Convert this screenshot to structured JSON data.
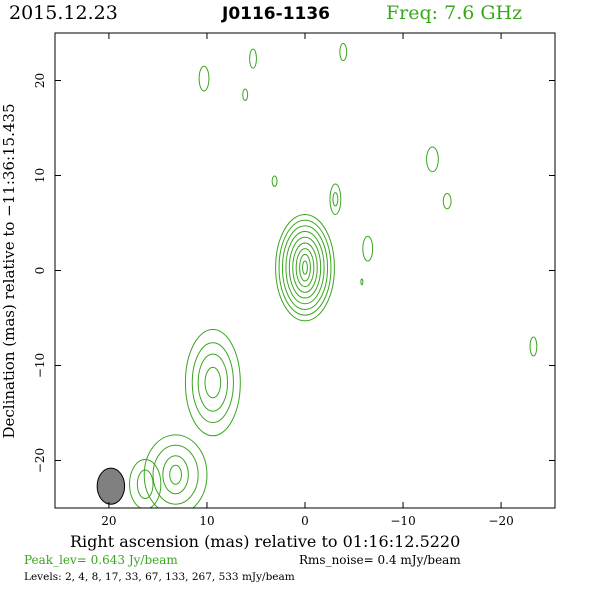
{
  "header": {
    "date": "2015.12.23",
    "source": "J0116-1136",
    "frequency": "Freq: 7.6 GHz"
  },
  "footer": {
    "peak_level": "Peak_lev=  0.643 Jy/beam",
    "rms_noise": "Rms_noise=  0.4 mJy/beam",
    "levels": "Levels:  2,   4,   8,  17,  33,  67, 133, 267, 533 mJy/beam"
  },
  "colors": {
    "contour": "#3aa61e",
    "axis": "#000000",
    "beam": "#808080"
  },
  "chart_data": {
    "type": "contour",
    "title": "J0116-1136",
    "xlabel": "Right ascension (mas) relative to 01:16:12.5220",
    "ylabel": "Declination (mas) relative to −11:36:15.435",
    "xlim": [
      25.5,
      -25.5
    ],
    "ylim": [
      -25,
      25
    ],
    "xticks": [
      20,
      10,
      0,
      -10,
      -20
    ],
    "xtick_labels": [
      "20",
      "10",
      "0",
      "−10",
      "−20"
    ],
    "yticks": [
      20,
      10,
      0,
      -10,
      -20
    ],
    "ytick_labels": [
      "20",
      "10",
      "0",
      "−10",
      "−20"
    ],
    "contour_levels_mJy": [
      2,
      4,
      8,
      17,
      33,
      67,
      133,
      267,
      533
    ],
    "peak_Jy_per_beam": 0.643,
    "rms_noise_mJy_per_beam": 0.4,
    "beam": {
      "x": 19.8,
      "y": -22.7,
      "major_mas": 3.8,
      "minor_mas": 1.4,
      "pa_deg": 0
    },
    "components": [
      {
        "name": "core",
        "x": 0.0,
        "y": 0.3,
        "ring_widths": [
          3.0,
          2.65,
          2.3,
          1.95,
          1.6,
          1.25,
          0.9,
          0.55,
          0.25
        ],
        "ring_heights": [
          5.6,
          5.0,
          4.4,
          3.8,
          3.2,
          2.6,
          2.0,
          1.4,
          0.7
        ]
      },
      {
        "name": "jet-knot-1",
        "x": 9.4,
        "y": -11.8,
        "ring_widths": [
          2.8,
          2.1,
          1.5,
          0.8
        ],
        "ring_heights": [
          5.6,
          4.2,
          3.0,
          1.6
        ]
      },
      {
        "name": "jet-knot-2",
        "x": 13.2,
        "y": -21.5,
        "ring_widths": [
          3.2,
          2.3,
          1.3,
          0.6
        ],
        "ring_heights": [
          4.2,
          3.1,
          2.0,
          1.0
        ]
      },
      {
        "name": "jet-knot-3",
        "x": 16.3,
        "y": -22.5,
        "ring_widths": [
          1.6,
          0.8
        ],
        "ring_heights": [
          2.6,
          1.5
        ]
      },
      {
        "name": "blob-1",
        "x": 10.3,
        "y": 20.2,
        "ring_widths": [
          0.5
        ],
        "ring_heights": [
          1.3
        ]
      },
      {
        "name": "blob-2",
        "x": 5.3,
        "y": 22.3,
        "ring_widths": [
          0.35
        ],
        "ring_heights": [
          1.0
        ]
      },
      {
        "name": "blob-3",
        "x": -3.9,
        "y": 23.0,
        "ring_widths": [
          0.35
        ],
        "ring_heights": [
          0.9
        ]
      },
      {
        "name": "blob-4",
        "x": 6.1,
        "y": 18.5,
        "ring_widths": [
          0.25
        ],
        "ring_heights": [
          0.6
        ]
      },
      {
        "name": "blob-5",
        "x": -13.0,
        "y": 11.7,
        "ring_widths": [
          0.6
        ],
        "ring_heights": [
          1.3
        ]
      },
      {
        "name": "blob-6",
        "x": 3.1,
        "y": 9.4,
        "ring_widths": [
          0.25
        ],
        "ring_heights": [
          0.55
        ]
      },
      {
        "name": "blob-7",
        "x": -3.1,
        "y": 7.5,
        "ring_widths": [
          0.55,
          0.25
        ],
        "ring_heights": [
          1.6,
          0.7
        ]
      },
      {
        "name": "blob-8",
        "x": -14.5,
        "y": 7.3,
        "ring_widths": [
          0.4
        ],
        "ring_heights": [
          0.8
        ]
      },
      {
        "name": "blob-9",
        "x": -6.4,
        "y": 2.3,
        "ring_widths": [
          0.5
        ],
        "ring_heights": [
          1.3
        ]
      },
      {
        "name": "blob-10",
        "x": -23.3,
        "y": -8.0,
        "ring_widths": [
          0.35
        ],
        "ring_heights": [
          1.0
        ]
      },
      {
        "name": "blob-11",
        "x": -5.8,
        "y": -1.2,
        "ring_widths": [
          0.1
        ],
        "ring_heights": [
          0.3
        ]
      }
    ]
  }
}
